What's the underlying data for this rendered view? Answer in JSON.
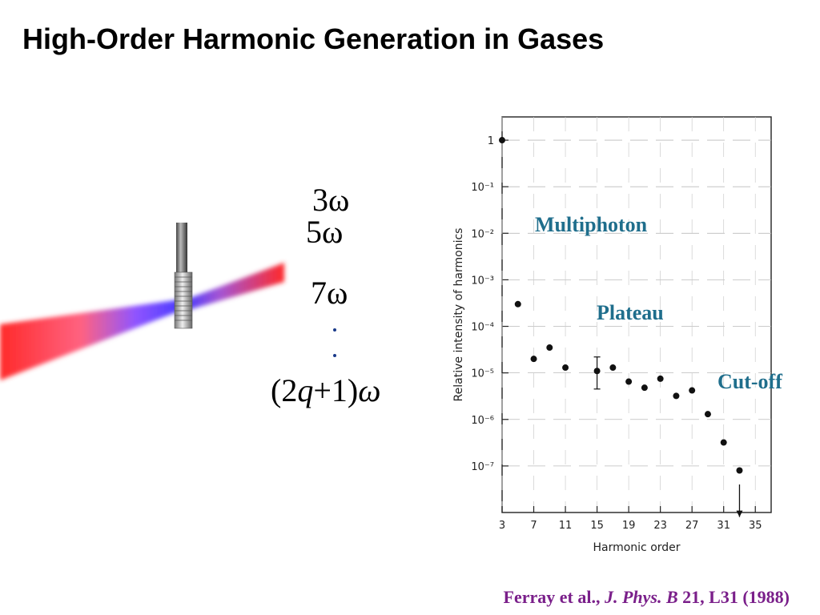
{
  "slide": {
    "title": "High-Order Harmonic Generation in Gases"
  },
  "harmonics": {
    "h3": "3ω",
    "h5": "5ω",
    "h7": "7ω",
    "general": "(2q+1)ω",
    "general_parts": {
      "open": "(2",
      "q": "q",
      "plus": "+1)",
      "omega": "ω"
    }
  },
  "reference": {
    "authors": "Ferray et al.,",
    "journal": "J. Phys. B",
    "details": "21, L31 (1988)"
  },
  "annotations": {
    "multiphoton": "Multiphoton",
    "plateau": "Plateau",
    "cutoff": "Cut-off"
  },
  "colors": {
    "beam_red": "#ff2a2a",
    "beam_blue": "#4a3cff",
    "annotation": "#1f6e8c",
    "reference": "#7a1f8a"
  },
  "chart_data": {
    "type": "scatter",
    "xlabel": "Harmonic order",
    "ylabel": "Relative intensity of harmonics",
    "xlim": [
      3,
      37
    ],
    "ylim_log10": [
      -8,
      0.5
    ],
    "yscale": "log",
    "grid": true,
    "x_ticks": [
      3,
      7,
      11,
      15,
      19,
      23,
      27,
      31,
      35
    ],
    "y_ticks": [
      {
        "value": 1,
        "label": "1"
      },
      {
        "value": 0.1,
        "label": "10⁻¹"
      },
      {
        "value": 0.01,
        "label": "10⁻²"
      },
      {
        "value": 0.001,
        "label": "10⁻³"
      },
      {
        "value": 0.0001,
        "label": "10⁻⁴"
      },
      {
        "value": 1e-05,
        "label": "10⁻⁵"
      },
      {
        "value": 1e-06,
        "label": "10⁻⁶"
      },
      {
        "value": 1e-07,
        "label": "10⁻⁷"
      }
    ],
    "points": [
      {
        "x": 3,
        "y": 1.0
      },
      {
        "x": 5,
        "y": 0.0003
      },
      {
        "x": 7,
        "y": 2e-05
      },
      {
        "x": 9,
        "y": 3.5e-05
      },
      {
        "x": 11,
        "y": 1.3e-05
      },
      {
        "x": 15,
        "y": 1.1e-05,
        "err_low": 4.5e-06,
        "err_high": 2.2e-05
      },
      {
        "x": 17,
        "y": 1.3e-05
      },
      {
        "x": 19,
        "y": 6.5e-06
      },
      {
        "x": 21,
        "y": 4.8e-06
      },
      {
        "x": 23,
        "y": 7.5e-06
      },
      {
        "x": 25,
        "y": 3.2e-06
      },
      {
        "x": 27,
        "y": 4.2e-06
      },
      {
        "x": 29,
        "y": 1.3e-06
      },
      {
        "x": 31,
        "y": 3.2e-07
      },
      {
        "x": 33,
        "y": 8e-08
      }
    ],
    "upper_limit_arrow": {
      "x": 33,
      "y_from": 4e-08,
      "y_to": 8e-09
    }
  }
}
